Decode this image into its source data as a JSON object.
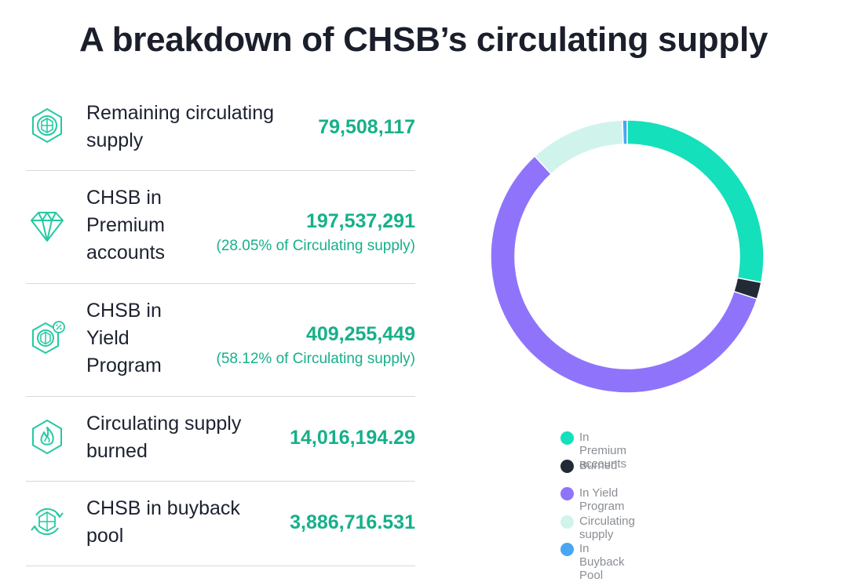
{
  "title": "A breakdown of CHSB’s circulating supply",
  "rows": [
    {
      "label_lines": [
        "Remaining circulating",
        "supply"
      ],
      "value": "79,508,117",
      "sub": "",
      "icon": "chsb-coin-icon"
    },
    {
      "label_lines": [
        "CHSB in",
        "Premium",
        "accounts"
      ],
      "value": "197,537,291",
      "sub": "(28.05% of Circulating supply)",
      "icon": "diamond-icon"
    },
    {
      "label_lines": [
        "CHSB in",
        "Yield",
        "Program"
      ],
      "value": "409,255,449",
      "sub": "(58.12% of Circulating supply)",
      "icon": "chsb-percent-icon"
    },
    {
      "label_lines": [
        "Circulating supply",
        "burned"
      ],
      "value": "14,016,194.29",
      "sub": "",
      "icon": "flame-icon"
    },
    {
      "label_lines": [
        "CHSB in buyback",
        "pool"
      ],
      "value": "3,886,716.531",
      "sub": "",
      "icon": "chsb-cycle-icon"
    }
  ],
  "chart_data": {
    "type": "pie",
    "donut": true,
    "title": "",
    "legend_position": "bottom",
    "series": [
      {
        "name": "In Premium accounts",
        "value": 197537291,
        "color": "#14e0bb"
      },
      {
        "name": "Burned",
        "value": 14016194.29,
        "color": "#222a36"
      },
      {
        "name": "In Yield Program",
        "value": 409255449,
        "color": "#8f74fb"
      },
      {
        "name": "Circulating supply",
        "value": 79508117,
        "color": "#d0f4ec"
      },
      {
        "name": "In Buyback Pool",
        "value": 3886716.531,
        "color": "#4aa6f2"
      }
    ]
  },
  "colors": {
    "accent": "#16b08a",
    "divider": "#d6d8db",
    "icon_stroke": "#26c9a3"
  }
}
